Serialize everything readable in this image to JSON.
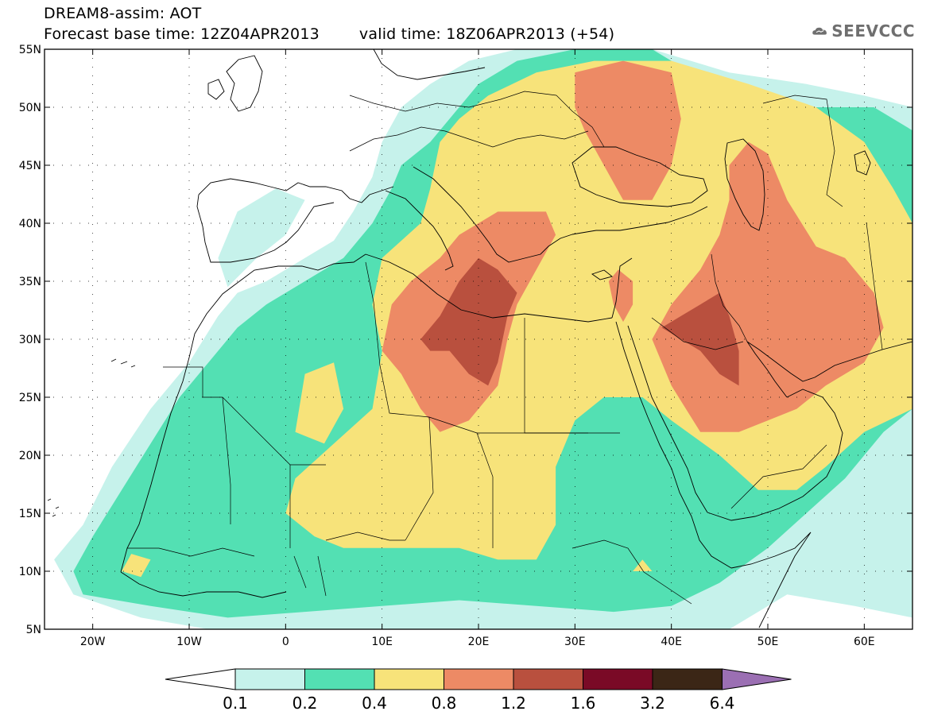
{
  "title": {
    "line1": "DREAM8-assim: AOT",
    "line2_base": "Forecast base time: 12Z04APR2013",
    "line2_valid": "valid time: 18Z06APR2013 (+54)"
  },
  "logo": {
    "text": "SEEVCCC",
    "icon": "cloud-icon"
  },
  "map": {
    "lon_range": [
      -25,
      65
    ],
    "lat_range": [
      5,
      55
    ],
    "lat_ticks": [
      {
        "value": 55,
        "label": "55N"
      },
      {
        "value": 50,
        "label": "50N"
      },
      {
        "value": 45,
        "label": "45N"
      },
      {
        "value": 40,
        "label": "40N"
      },
      {
        "value": 35,
        "label": "35N"
      },
      {
        "value": 30,
        "label": "30N"
      },
      {
        "value": 25,
        "label": "25N"
      },
      {
        "value": 20,
        "label": "20N"
      },
      {
        "value": 15,
        "label": "15N"
      },
      {
        "value": 10,
        "label": "10N"
      },
      {
        "value": 5,
        "label": "5N"
      }
    ],
    "lon_ticks": [
      {
        "value": -20,
        "label": "20W"
      },
      {
        "value": -10,
        "label": "10W"
      },
      {
        "value": 0,
        "label": "0"
      },
      {
        "value": 10,
        "label": "10E"
      },
      {
        "value": 20,
        "label": "20E"
      },
      {
        "value": 30,
        "label": "30E"
      },
      {
        "value": 40,
        "label": "40E"
      },
      {
        "value": 50,
        "label": "50E"
      },
      {
        "value": 60,
        "label": "60E"
      }
    ],
    "grid": "dotted",
    "fields": [
      {
        "level": "0.1-0.2",
        "color": "#c6f2eb",
        "polygons": [
          [
            [
              -22,
              8
            ],
            [
              -24,
              11
            ],
            [
              -21,
              14
            ],
            [
              -18,
              19
            ],
            [
              -14,
              24
            ],
            [
              -10,
              28
            ],
            [
              -7,
              32
            ],
            [
              -5,
              34
            ],
            [
              -2,
              35
            ],
            [
              2,
              37
            ],
            [
              5,
              38.5
            ],
            [
              7,
              41
            ],
            [
              9,
              44
            ],
            [
              10,
              47
            ],
            [
              12,
              50
            ],
            [
              15,
              52
            ],
            [
              19,
              54
            ],
            [
              24,
              55
            ],
            [
              30,
              55
            ],
            [
              38,
              55
            ],
            [
              46,
              53
            ],
            [
              54,
              52
            ],
            [
              60,
              51
            ],
            [
              65,
              50
            ],
            [
              65,
              6
            ],
            [
              59,
              7
            ],
            [
              52,
              8
            ],
            [
              46,
              5
            ],
            [
              39,
              5
            ],
            [
              30,
              5
            ],
            [
              20,
              5
            ],
            [
              10,
              5
            ],
            [
              0,
              5
            ],
            [
              -8,
              5
            ],
            [
              -15,
              6
            ]
          ],
          [
            [
              -6,
              34.5
            ],
            [
              -3,
              37
            ],
            [
              0,
              39
            ],
            [
              2,
              42
            ],
            [
              -1,
              43
            ],
            [
              -5,
              41
            ],
            [
              -7,
              37
            ]
          ]
        ]
      },
      {
        "level": "0.2-0.4",
        "color": "#53e0b3",
        "polygons": [
          [
            [
              -21,
              8
            ],
            [
              -22,
              10
            ],
            [
              -20,
              13
            ],
            [
              -17,
              17
            ],
            [
              -14,
              21
            ],
            [
              -11,
              25
            ],
            [
              -8,
              28
            ],
            [
              -5,
              31
            ],
            [
              -2,
              33
            ],
            [
              2,
              35
            ],
            [
              6,
              37
            ],
            [
              9,
              40
            ],
            [
              11,
              43
            ],
            [
              12,
              45
            ],
            [
              15,
              47
            ],
            [
              18,
              50
            ],
            [
              20,
              52
            ],
            [
              24,
              54
            ],
            [
              30,
              55
            ],
            [
              38,
              55
            ],
            [
              44,
              52
            ],
            [
              50,
              50
            ],
            [
              56,
              50
            ],
            [
              61,
              50
            ],
            [
              65,
              48
            ],
            [
              65,
              24
            ],
            [
              62,
              22
            ],
            [
              58,
              18
            ],
            [
              54,
              15
            ],
            [
              50,
              12
            ],
            [
              45,
              9
            ],
            [
              40,
              7
            ],
            [
              34,
              6.5
            ],
            [
              26,
              7
            ],
            [
              18,
              7.5
            ],
            [
              10,
              7
            ],
            [
              2,
              6.5
            ],
            [
              -6,
              6
            ],
            [
              -14,
              7
            ]
          ]
        ]
      },
      {
        "level": "0.4-0.8",
        "color": "#f7e37a",
        "polygons": [
          [
            [
              3,
              13
            ],
            [
              0,
              15
            ],
            [
              1,
              18
            ],
            [
              5,
              21
            ],
            [
              9,
              24
            ],
            [
              10,
              29
            ],
            [
              9,
              33
            ],
            [
              10,
              37
            ],
            [
              14,
              40
            ],
            [
              15,
              43
            ],
            [
              16,
              47
            ],
            [
              18,
              49
            ],
            [
              21,
              51
            ],
            [
              26,
              53
            ],
            [
              32,
              54
            ],
            [
              40,
              54
            ],
            [
              48,
              52
            ],
            [
              55,
              50
            ],
            [
              60,
              47
            ],
            [
              63,
              43
            ],
            [
              65,
              40
            ],
            [
              65,
              24
            ],
            [
              60,
              22
            ],
            [
              56,
              19
            ],
            [
              53,
              17
            ],
            [
              49,
              17
            ],
            [
              45,
              20
            ],
            [
              40,
              23
            ],
            [
              37,
              25
            ],
            [
              33,
              25
            ],
            [
              30,
              23
            ],
            [
              28,
              19
            ],
            [
              28,
              14
            ],
            [
              26,
              11
            ],
            [
              22,
              11
            ],
            [
              18,
              12
            ],
            [
              14,
              12
            ],
            [
              10,
              12
            ],
            [
              6,
              12
            ]
          ],
          [
            [
              1,
              22
            ],
            [
              2,
              27
            ],
            [
              5,
              28
            ],
            [
              6,
              24
            ],
            [
              4,
              21
            ]
          ],
          [
            [
              -17,
              10
            ],
            [
              -16,
              11.5
            ],
            [
              -14,
              11
            ],
            [
              -15,
              9.5
            ]
          ],
          [
            [
              36,
              10
            ],
            [
              37,
              11
            ],
            [
              38,
              10
            ]
          ]
        ]
      },
      {
        "level": "0.8-1.2",
        "color": "#ed8a65",
        "polygons": [
          [
            [
              10,
              29
            ],
            [
              11,
              33
            ],
            [
              13,
              35
            ],
            [
              16,
              37
            ],
            [
              18,
              39
            ],
            [
              22,
              41
            ],
            [
              27,
              41
            ],
            [
              28,
              39
            ],
            [
              26,
              36
            ],
            [
              24,
              33
            ],
            [
              23,
              30
            ],
            [
              22,
              26
            ],
            [
              19,
              23
            ],
            [
              16,
              22
            ],
            [
              14,
              24
            ],
            [
              12,
              27
            ]
          ],
          [
            [
              30,
              50
            ],
            [
              30,
              53
            ],
            [
              35,
              54
            ],
            [
              40,
              53
            ],
            [
              41,
              49
            ],
            [
              40,
              45
            ],
            [
              38,
              42
            ],
            [
              35,
              42
            ],
            [
              33,
              45
            ],
            [
              31,
              48
            ]
          ],
          [
            [
              34,
              33
            ],
            [
              33.5,
              35
            ],
            [
              34.5,
              36
            ],
            [
              36,
              35
            ],
            [
              36,
              33
            ],
            [
              35,
              31.5
            ]
          ],
          [
            [
              43,
              22
            ],
            [
              40,
              26
            ],
            [
              38,
              30
            ],
            [
              40,
              33
            ],
            [
              43,
              36
            ],
            [
              45,
              39
            ],
            [
              46,
              42
            ],
            [
              46,
              45
            ],
            [
              48,
              47
            ],
            [
              50,
              46
            ],
            [
              52,
              42
            ],
            [
              55,
              38
            ],
            [
              58,
              37
            ],
            [
              61,
              34
            ],
            [
              62,
              31
            ],
            [
              60,
              28
            ],
            [
              58,
              27
            ],
            [
              56,
              26
            ],
            [
              53,
              24
            ],
            [
              50,
              23
            ],
            [
              47,
              22
            ]
          ]
        ]
      },
      {
        "level": "1.2-1.6",
        "color": "#b9503e",
        "polygons": [
          [
            [
              14,
              30
            ],
            [
              16,
              32
            ],
            [
              18,
              35
            ],
            [
              20,
              37
            ],
            [
              22,
              36
            ],
            [
              24,
              34
            ],
            [
              23,
              32
            ],
            [
              22,
              28
            ],
            [
              21,
              26
            ],
            [
              19,
              27
            ],
            [
              17,
              29
            ],
            [
              15,
              29
            ]
          ],
          [
            [
              39,
              31
            ],
            [
              41,
              32
            ],
            [
              43,
              33
            ],
            [
              45,
              34
            ],
            [
              46,
              32
            ],
            [
              47,
              29
            ],
            [
              47,
              26
            ],
            [
              45,
              27
            ],
            [
              43,
              29
            ],
            [
              41,
              30
            ]
          ]
        ]
      }
    ],
    "colorbar": {
      "labels": [
        "0.1",
        "0.2",
        "0.4",
        "0.8",
        "1.2",
        "1.6",
        "3.2",
        "6.4"
      ],
      "colors": [
        "#ffffff",
        "#c6f2eb",
        "#53e0b3",
        "#f7e37a",
        "#ed8a65",
        "#b9503e",
        "#7a0a26",
        "#3b2616",
        "#9b6fb3"
      ]
    }
  }
}
